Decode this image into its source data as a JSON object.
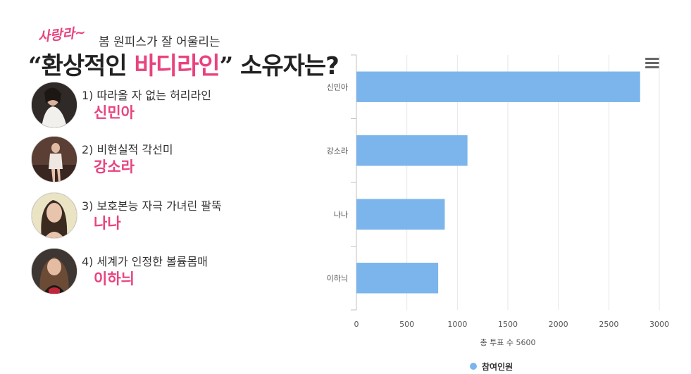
{
  "headline": {
    "script_tag": "사랑라~",
    "sub": "봄 원피스가 잘 어울리는",
    "open_quote": "“",
    "prefix": "환상적인 ",
    "accent": "바디라인",
    "close_quote": "”",
    "suffix": " 소유자는?"
  },
  "candidates": [
    {
      "desc": "1) 따라올 자 없는 허리라인",
      "name": "신민아"
    },
    {
      "desc": "2) 비현실적 각선미",
      "name": "강소라"
    },
    {
      "desc": "3) 보호본능 자극 가녀린 팔뚝",
      "name": "나나"
    },
    {
      "desc": "4) 세계가 인정한 볼륨몸매",
      "name": "이하늬"
    }
  ],
  "colors": {
    "accent": "#e8437f",
    "bar": "#7cb5ec",
    "grid": "#e6e6e6"
  },
  "chart_data": {
    "type": "bar",
    "orientation": "horizontal",
    "categories": [
      "신민아",
      "강소라",
      "나나",
      "이하늬"
    ],
    "series": [
      {
        "name": "참여인원",
        "values": [
          2810,
          1100,
          875,
          810
        ]
      }
    ],
    "xlim": [
      0,
      3000
    ],
    "xticks": [
      0,
      500,
      1000,
      1500,
      2000,
      2500,
      3000
    ],
    "xlabel": "총 투표 수 5600",
    "grid": true,
    "legend": "bottom-center"
  }
}
